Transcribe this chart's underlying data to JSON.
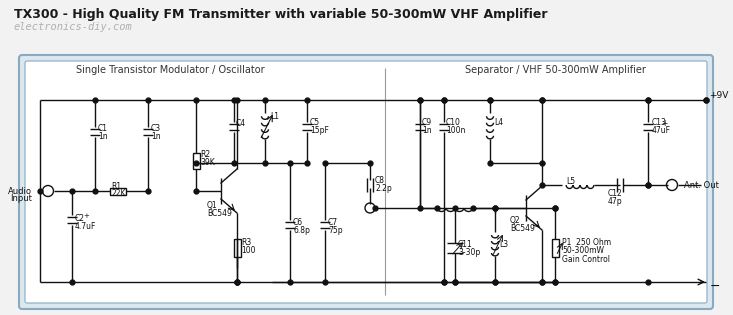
{
  "title": "TX300 - High Quality FM Transmitter with variable 50-300mW VHF Amplifier",
  "watermark": "electronics-diy.com",
  "title_color": "#1a1a1a",
  "watermark_color": "#b0b0b0",
  "bg_color": "#f2f2f2",
  "box_outer_bg": "#dce8f0",
  "box_inner_bg": "#ffffff",
  "box_border": "#8aaabf",
  "line_color": "#111111",
  "label_left": "Single Transistor Modulator / Oscillator",
  "label_right": "Separator / VHF 50-300mW Amplifier",
  "fig_w": 7.33,
  "fig_h": 3.15,
  "dpi": 100
}
